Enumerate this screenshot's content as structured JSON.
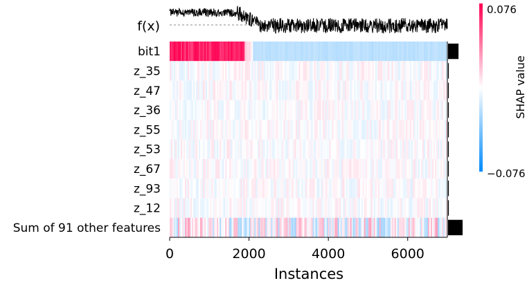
{
  "chart_data": {
    "type": "heatmap",
    "title": "",
    "fx_label": "f(x)",
    "features": [
      "bit1",
      "z_35",
      "z_47",
      "z_36",
      "z_55",
      "z_53",
      "z_67",
      "z_93",
      "z_12",
      "Sum of 91 other features"
    ],
    "feature_importance": [
      0.028,
      0.002,
      0.002,
      0.002,
      0.002,
      0.002,
      0.002,
      0.002,
      0.002,
      0.039
    ],
    "xlabel": "Instances",
    "xlim": [
      0,
      7000
    ],
    "xticks": [
      "0",
      "2000",
      "4000",
      "6000"
    ],
    "xtick_values": [
      0,
      2000,
      4000,
      6000
    ],
    "n_instances": 7000,
    "colorbar": {
      "label": "SHAP value",
      "max_label": "0.076",
      "min_label": "−0.076",
      "vmin": -0.076,
      "vmax": 0.076
    },
    "bit1_pattern": {
      "positive_until": 1900,
      "transition_end": 2100,
      "positive_value": 0.076,
      "negative_value": -0.02
    },
    "colors": {
      "positive": "#ff0052",
      "negative": "#008bfb",
      "importance_bar": "#000000"
    }
  }
}
